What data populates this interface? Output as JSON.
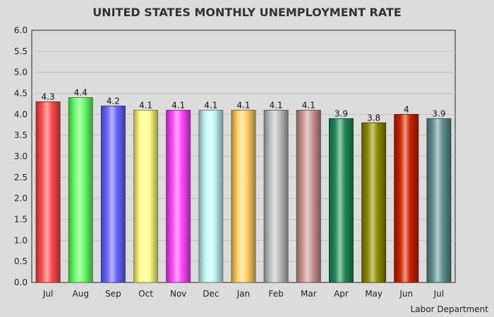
{
  "chart_data": {
    "type": "bar",
    "title": "UNITED STATES MONTHLY UNEMPLOYMENT RATE",
    "source": "Labor Department",
    "xlabel": "",
    "ylabel": "",
    "ylim": [
      0,
      6
    ],
    "ytick_step": 0.5,
    "grid": true,
    "categories": [
      "Jul",
      "Aug",
      "Sep",
      "Oct",
      "Nov",
      "Dec",
      "Jan",
      "Feb",
      "Mar",
      "Apr",
      "May",
      "Jun",
      "Jul"
    ],
    "values": [
      4.3,
      4.4,
      4.2,
      4.1,
      4.1,
      4.1,
      4.1,
      4.1,
      4.1,
      3.9,
      3.8,
      4,
      3.9
    ],
    "value_labels": [
      "4.3",
      "4.4",
      "4.2",
      "4.1",
      "4.1",
      "4.1",
      "4.1",
      "4.1",
      "4.1",
      "3.9",
      "3.8",
      "4",
      "3.9"
    ],
    "colors": [
      "#ff4d4d",
      "#66ff66",
      "#6666ff",
      "#ffff80",
      "#ff44ff",
      "#bff5f5",
      "#ffd060",
      "#bdbdbd",
      "#c99393",
      "#1f8a55",
      "#8a8a00",
      "#cc2200",
      "#5f9090"
    ]
  }
}
